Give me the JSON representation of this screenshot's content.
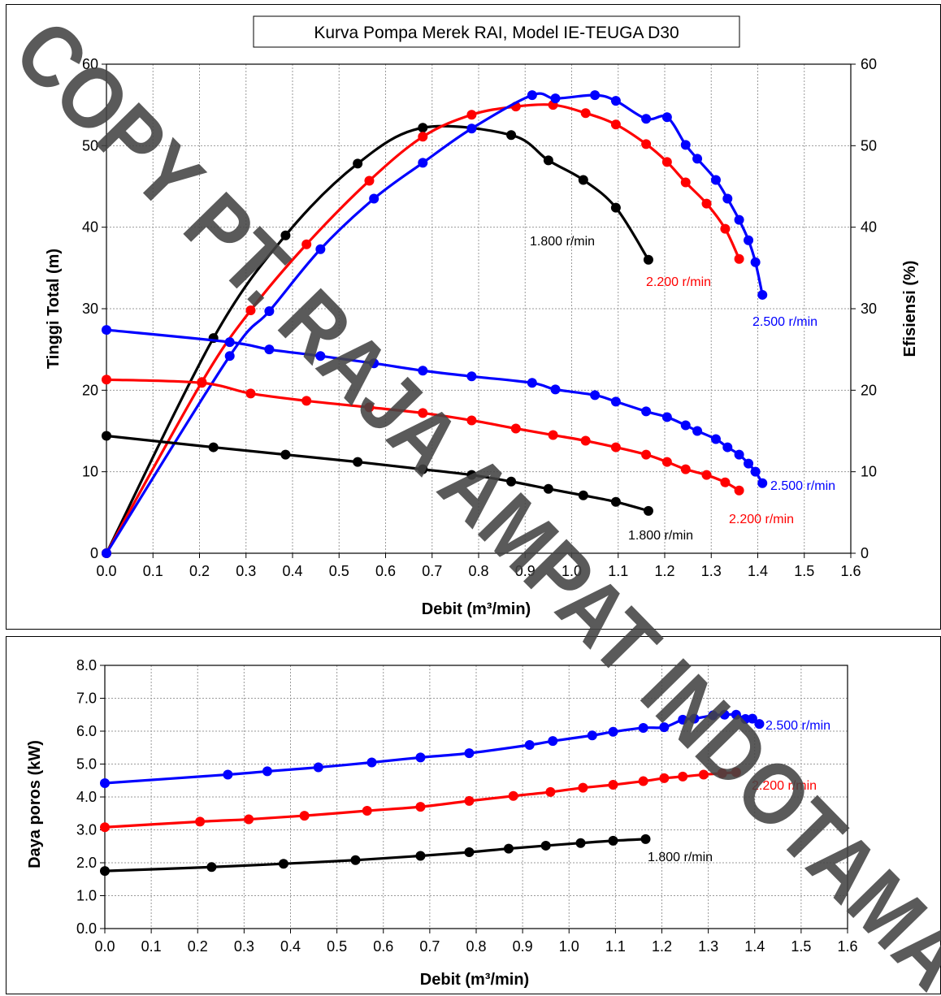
{
  "watermark": "COPY PT. RAJA AMPAT INDOTAMA",
  "chart_data": [
    {
      "type": "scatter",
      "title": "Kurva Pompa Merek RAI, Model IE-TEUGA D30",
      "xlabel": "Debit (m³/min)",
      "ylabel": "Tinggi Total (m)",
      "y2label": "Efisiensi (%)",
      "xlim": [
        0,
        1.6
      ],
      "ylim": [
        0,
        60
      ],
      "y2lim": [
        0,
        60
      ],
      "xticks": [
        "0.0",
        "0.1",
        "0.2",
        "0.3",
        "0.4",
        "0.5",
        "0.6",
        "0.7",
        "0.8",
        "0.9",
        "1.0",
        "1.1",
        "1.2",
        "1.3",
        "1.4",
        "1.5",
        "1.6"
      ],
      "yticks": [
        "0",
        "10",
        "20",
        "30",
        "40",
        "50",
        "60"
      ],
      "y2ticks": [
        "0",
        "10",
        "20",
        "30",
        "40",
        "50",
        "60"
      ],
      "grid": true,
      "series": [
        {
          "name": "1.800 r/min",
          "kind": "efficiency",
          "color": "#000000",
          "points": [
            [
              0,
              0
            ],
            [
              0.23,
              26.4
            ],
            [
              0.385,
              39
            ],
            [
              0.54,
              47.8
            ],
            [
              0.68,
              52.2
            ],
            [
              0.87,
              51.3
            ],
            [
              0.95,
              48.2
            ],
            [
              1.025,
              45.8
            ],
            [
              1.095,
              42.4
            ],
            [
              1.165,
              36
            ]
          ]
        },
        {
          "name": "2.200 r/min",
          "kind": "efficiency",
          "color": "#ff0000",
          "points": [
            [
              0,
              0
            ],
            [
              0.205,
              21
            ],
            [
              0.31,
              29.8
            ],
            [
              0.43,
              37.9
            ],
            [
              0.565,
              45.7
            ],
            [
              0.68,
              51.1
            ],
            [
              0.785,
              53.8
            ],
            [
              0.88,
              54.8
            ],
            [
              0.96,
              55
            ],
            [
              1.03,
              54
            ],
            [
              1.095,
              52.6
            ],
            [
              1.16,
              50.2
            ],
            [
              1.205,
              48
            ],
            [
              1.245,
              45.5
            ],
            [
              1.29,
              42.9
            ],
            [
              1.33,
              39.8
            ],
            [
              1.36,
              36.1
            ]
          ]
        },
        {
          "name": "2.500 r/min",
          "kind": "efficiency",
          "color": "#0000ff",
          "points": [
            [
              0,
              0
            ],
            [
              0.265,
              24.2
            ],
            [
              0.35,
              29.7
            ],
            [
              0.46,
              37.3
            ],
            [
              0.575,
              43.5
            ],
            [
              0.68,
              47.9
            ],
            [
              0.785,
              52.1
            ],
            [
              0.915,
              56.2
            ],
            [
              0.965,
              55.8
            ],
            [
              1.05,
              56.2
            ],
            [
              1.095,
              55.5
            ],
            [
              1.16,
              53.3
            ],
            [
              1.205,
              53.5
            ],
            [
              1.245,
              50.1
            ],
            [
              1.27,
              48.4
            ],
            [
              1.31,
              45.8
            ],
            [
              1.335,
              43.5
            ],
            [
              1.36,
              40.9
            ],
            [
              1.38,
              38.4
            ],
            [
              1.395,
              35.7
            ],
            [
              1.41,
              31.7
            ]
          ]
        },
        {
          "name": "2.500 r/min",
          "kind": "head",
          "color": "#0000ff",
          "points": [
            [
              0,
              27.4
            ],
            [
              0.265,
              25.9
            ],
            [
              0.35,
              25
            ],
            [
              0.46,
              24.2
            ],
            [
              0.575,
              23.3
            ],
            [
              0.68,
              22.4
            ],
            [
              0.785,
              21.7
            ],
            [
              0.915,
              20.9
            ],
            [
              0.965,
              20.1
            ],
            [
              1.05,
              19.4
            ],
            [
              1.095,
              18.6
            ],
            [
              1.16,
              17.4
            ],
            [
              1.205,
              16.7
            ],
            [
              1.245,
              15.7
            ],
            [
              1.27,
              15
            ],
            [
              1.31,
              14
            ],
            [
              1.335,
              13
            ],
            [
              1.36,
              12.1
            ],
            [
              1.38,
              11
            ],
            [
              1.395,
              10
            ],
            [
              1.41,
              8.6
            ]
          ]
        },
        {
          "name": "2.200 r/min",
          "kind": "head",
          "color": "#ff0000",
          "points": [
            [
              0,
              21.3
            ],
            [
              0.205,
              20.9
            ],
            [
              0.31,
              19.6
            ],
            [
              0.43,
              18.7
            ],
            [
              0.565,
              17.9
            ],
            [
              0.68,
              17.2
            ],
            [
              0.785,
              16.3
            ],
            [
              0.88,
              15.3
            ],
            [
              0.96,
              14.5
            ],
            [
              1.03,
              13.8
            ],
            [
              1.095,
              13
            ],
            [
              1.16,
              12.1
            ],
            [
              1.205,
              11.2
            ],
            [
              1.245,
              10.3
            ],
            [
              1.29,
              9.6
            ],
            [
              1.33,
              8.7
            ],
            [
              1.36,
              7.7
            ]
          ]
        },
        {
          "name": "1.800 r/min",
          "kind": "head",
          "color": "#000000",
          "points": [
            [
              0,
              14.4
            ],
            [
              0.23,
              13
            ],
            [
              0.385,
              12.1
            ],
            [
              0.54,
              11.2
            ],
            [
              0.68,
              10.3
            ],
            [
              0.785,
              9.6
            ],
            [
              0.87,
              8.8
            ],
            [
              0.95,
              7.9
            ],
            [
              1.025,
              7.1
            ],
            [
              1.095,
              6.3
            ],
            [
              1.165,
              5.2
            ]
          ]
        }
      ]
    },
    {
      "type": "scatter",
      "title": "",
      "xlabel": "Debit (m³/min)",
      "ylabel": "Daya poros (kW)",
      "xlim": [
        0,
        1.6
      ],
      "ylim": [
        0,
        8
      ],
      "xticks": [
        "0.0",
        "0.1",
        "0.2",
        "0.3",
        "0.4",
        "0.5",
        "0.6",
        "0.7",
        "0.8",
        "0.9",
        "1.0",
        "1.1",
        "1.2",
        "1.3",
        "1.4",
        "1.5",
        "1.6"
      ],
      "yticks": [
        "0.0",
        "1.0",
        "2.0",
        "3.0",
        "4.0",
        "5.0",
        "6.0",
        "7.0",
        "8.0"
      ],
      "grid": true,
      "series": [
        {
          "name": "2.500 r/min",
          "color": "#0000ff",
          "points": [
            [
              0,
              4.42
            ],
            [
              0.265,
              4.68
            ],
            [
              0.35,
              4.78
            ],
            [
              0.46,
              4.9
            ],
            [
              0.575,
              5.05
            ],
            [
              0.68,
              5.2
            ],
            [
              0.785,
              5.33
            ],
            [
              0.915,
              5.58
            ],
            [
              0.965,
              5.7
            ],
            [
              1.05,
              5.87
            ],
            [
              1.095,
              5.98
            ],
            [
              1.16,
              6.1
            ],
            [
              1.205,
              6.12
            ],
            [
              1.245,
              6.35
            ],
            [
              1.27,
              6.38
            ],
            [
              1.31,
              6.48
            ],
            [
              1.335,
              6.5
            ],
            [
              1.36,
              6.5
            ],
            [
              1.38,
              6.37
            ],
            [
              1.395,
              6.38
            ],
            [
              1.41,
              6.22
            ]
          ]
        },
        {
          "name": "2.200 r/min",
          "color": "#ff0000",
          "points": [
            [
              0,
              3.08
            ],
            [
              0.205,
              3.25
            ],
            [
              0.31,
              3.32
            ],
            [
              0.43,
              3.43
            ],
            [
              0.565,
              3.58
            ],
            [
              0.68,
              3.7
            ],
            [
              0.785,
              3.88
            ],
            [
              0.88,
              4.03
            ],
            [
              0.96,
              4.15
            ],
            [
              1.03,
              4.28
            ],
            [
              1.095,
              4.37
            ],
            [
              1.16,
              4.48
            ],
            [
              1.205,
              4.57
            ],
            [
              1.245,
              4.62
            ],
            [
              1.29,
              4.68
            ],
            [
              1.33,
              4.72
            ],
            [
              1.36,
              4.75
            ]
          ]
        },
        {
          "name": "1.800 r/min",
          "color": "#000000",
          "points": [
            [
              0,
              1.75
            ],
            [
              0.23,
              1.87
            ],
            [
              0.385,
              1.97
            ],
            [
              0.54,
              2.08
            ],
            [
              0.68,
              2.21
            ],
            [
              0.785,
              2.32
            ],
            [
              0.87,
              2.43
            ],
            [
              0.95,
              2.52
            ],
            [
              1.025,
              2.6
            ],
            [
              1.095,
              2.67
            ],
            [
              1.165,
              2.72
            ]
          ]
        }
      ]
    }
  ]
}
